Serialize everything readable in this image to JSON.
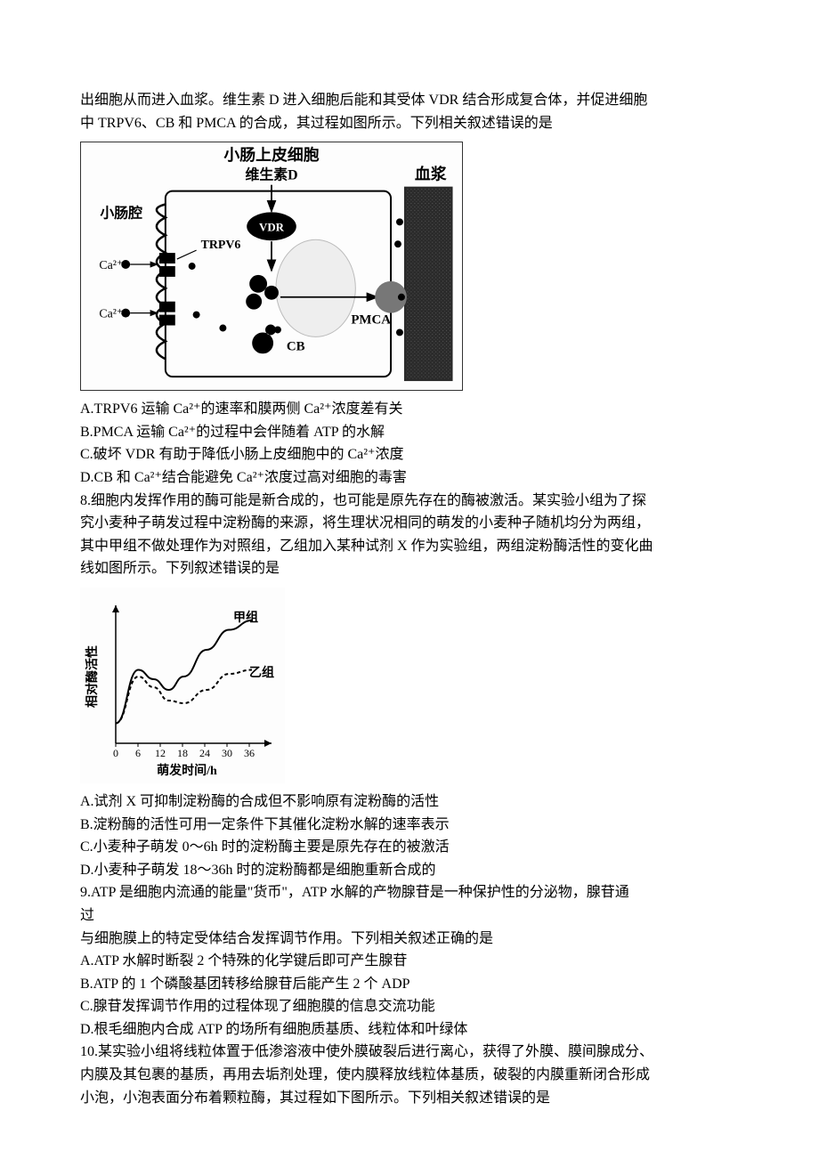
{
  "q7": {
    "intro1": "出细胞从而进入血浆。维生素 D 进入细胞后能和其受体 VDR 结合形成复合体，并促进细胞",
    "intro2": "中 TRPV6、CB 和 PMCA 的合成，其过程如图所示。下列相关叙述错误的是",
    "fig": {
      "title_top": "小肠上皮细胞",
      "vitd": "维生素D",
      "plasma": "血浆",
      "lumen": "小肠腔",
      "vdr": "VDR",
      "trpv6": "TRPV6",
      "ca": "Ca²⁺",
      "pmca": "PMCA",
      "cb": "CB",
      "stroke": "#000000",
      "fill_black": "#000000",
      "fill_gray": "#888888",
      "fill_light": "#e8e8e8",
      "fill_dark_texture": "#2a2a2a"
    },
    "optA": "A.TRPV6 运输 Ca²⁺的速率和膜两侧 Ca²⁺浓度差有关",
    "optB": "B.PMCA 运输 Ca²⁺的过程中会伴随着 ATP 的水解",
    "optC": "C.破坏 VDR 有助于降低小肠上皮细胞中的 Ca²⁺浓度",
    "optD": "D.CB 和 Ca²⁺结合能避免 Ca²⁺浓度过高对细胞的毒害"
  },
  "q8": {
    "intro1": "8.细胞内发挥作用的酶可能是新合成的，也可能是原先存在的酶被激活。某实验小组为了探",
    "intro2": "究小麦种子萌发过程中淀粉酶的来源，将生理状况相同的萌发的小麦种子随机均分为两组，",
    "intro3": "其中甲组不做处理作为对照组，乙组加入某种试剂 X 作为实验组，两组淀粉酶活性的变化曲",
    "intro4": "线如图所示。下列叙述错误的是",
    "chart": {
      "type": "line",
      "xlabel": "萌发时间/h",
      "ylabel": "相对酶活性",
      "xticks": [
        "0",
        "6",
        "12",
        "18",
        "24",
        "30",
        "36"
      ],
      "series": [
        {
          "name": "甲组",
          "dash": "none",
          "color": "#000000",
          "points": [
            [
              0,
              15
            ],
            [
              6,
              55
            ],
            [
              10,
              48
            ],
            [
              14,
              40
            ],
            [
              18,
              50
            ],
            [
              24,
              70
            ],
            [
              30,
              85
            ],
            [
              36,
              92
            ]
          ]
        },
        {
          "name": "乙组",
          "dash": "4,3",
          "color": "#000000",
          "points": [
            [
              0,
              15
            ],
            [
              6,
              50
            ],
            [
              10,
              42
            ],
            [
              14,
              32
            ],
            [
              18,
              30
            ],
            [
              24,
              40
            ],
            [
              30,
              52
            ],
            [
              36,
              55
            ]
          ]
        }
      ],
      "xlim": [
        0,
        40
      ],
      "ylim": [
        0,
        100
      ],
      "axis_color": "#000000",
      "font": 13
    },
    "optA": "A.试剂 X 可抑制淀粉酶的合成但不影响原有淀粉酶的活性",
    "optB": "B.淀粉酶的活性可用一定条件下其催化淀粉水解的速率表示",
    "optC": "C.小麦种子萌发 0～6h 时的淀粉酶主要是原先存在的被激活",
    "optD": "D.小麦种子萌发 18～36h 时的淀粉酶都是细胞重新合成的"
  },
  "q9": {
    "intro1": "9.ATP 是细胞内流通的能量\"货币\"，ATP 水解的产物腺苷是一种保护性的分泌物，腺苷通",
    "intro2": "过",
    "intro3": "与细胞膜上的特定受体结合发挥调节作用。下列相关叙述正确的是",
    "optA": "A.ATP 水解时断裂 2 个特殊的化学键后即可产生腺苷",
    "optB": "B.ATP 的 1 个磷酸基团转移给腺苷后能产生 2 个 ADP",
    "optC": "C.腺苷发挥调节作用的过程体现了细胞膜的信息交流功能",
    "optD": "D.根毛细胞内合成 ATP 的场所有细胞质基质、线粒体和叶绿体"
  },
  "q10": {
    "intro1": "10.某实验小组将线粒体置于低渗溶液中使外膜破裂后进行离心，获得了外膜、膜间腺成分、",
    "intro2": "内膜及其包裹的基质，再用去垢剂处理，使内膜释放线粒体基质，破裂的内膜重新闭合形成",
    "intro3": "小泡，小泡表面分布着颗粒酶，其过程如下图所示。下列相关叙述错误的是"
  }
}
